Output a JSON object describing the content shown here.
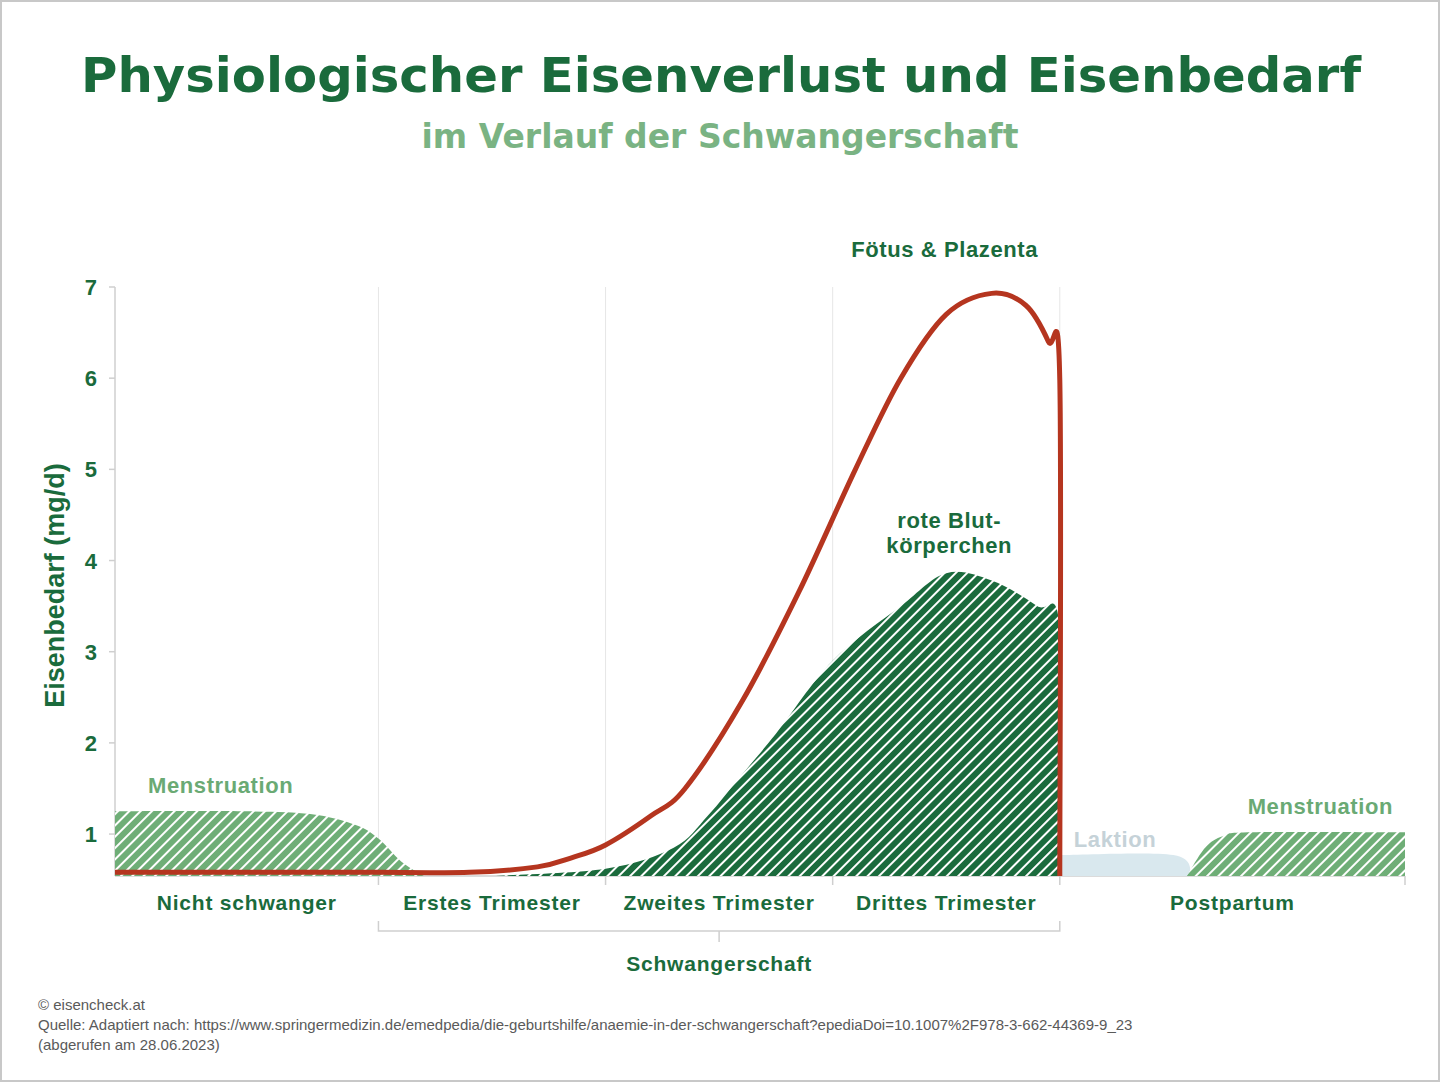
{
  "chart_data": {
    "type": "area",
    "title": "Physiologischer Eisenverlust und Eisenbedarf",
    "subtitle": "im Verlauf der Schwangerschaft",
    "y_label": "Eisenbedarf (mg/d)",
    "xlim": [
      -1.16,
      4.52
    ],
    "ylim": [
      0.54,
      7
    ],
    "yticks": [
      1,
      2,
      3,
      4,
      5,
      6,
      7
    ],
    "grid": true,
    "tick_labels": "y",
    "regions": [
      {
        "label": "Nicht schwanger",
        "from": -1.16,
        "to": 0
      },
      {
        "label": "Erstes Trimester",
        "from": 0,
        "to": 1
      },
      {
        "label": "Zweites Trimester",
        "from": 1,
        "to": 2
      },
      {
        "label": "Drittes Trimester",
        "from": 2,
        "to": 3
      },
      {
        "label": "Postpartum",
        "from": 3,
        "to": 4.52
      }
    ],
    "group": {
      "label": "Schwangerschaft",
      "from": 0,
      "to": 3
    },
    "series": [
      {
        "name": "Menstruation",
        "type": "area",
        "color": "#6fae77",
        "x": [
          -1.16,
          -0.6,
          -0.3,
          -0.1,
          0,
          0.1,
          0.2
        ],
        "values": [
          1.25,
          1.25,
          1.22,
          1.1,
          0.95,
          0.7,
          0.54
        ]
      },
      {
        "name": "Laktion",
        "type": "area",
        "color": "#d9e8ee",
        "x": [
          3,
          3.5,
          3.58
        ],
        "values": [
          0.77,
          0.77,
          0.54
        ]
      },
      {
        "name": "Menstruation",
        "type": "area",
        "color": "#6fae77",
        "x": [
          3.56,
          3.64,
          3.72,
          3.85,
          4.52
        ],
        "values": [
          0.54,
          0.85,
          0.98,
          1.02,
          1.02
        ]
      },
      {
        "name": "rote Blut-\nkörperchen",
        "type": "area",
        "color": "#1b6b3d",
        "x": [
          0.5,
          1.0,
          1.3,
          1.45,
          1.6,
          1.75,
          2.0,
          2.3,
          2.5,
          2.7,
          2.9,
          3.0,
          3.0
        ],
        "values": [
          0.54,
          0.62,
          0.85,
          1.2,
          1.65,
          2.1,
          2.9,
          3.5,
          3.86,
          3.78,
          3.5,
          3.25,
          0.54
        ]
      },
      {
        "name": "Fötus & Plazenta",
        "type": "line",
        "color": "#b5351f",
        "x": [
          -1.16,
          0,
          0.4,
          0.7,
          0.85,
          1.0,
          1.2,
          1.35,
          1.6,
          1.85,
          2.1,
          2.3,
          2.5,
          2.7,
          2.85,
          2.95,
          3.0,
          3.0
        ],
        "values": [
          0.58,
          0.58,
          0.58,
          0.64,
          0.74,
          0.88,
          1.2,
          1.5,
          2.45,
          3.65,
          5.0,
          6.0,
          6.7,
          6.93,
          6.8,
          6.4,
          5.98,
          0.54
        ]
      }
    ],
    "source": [
      "© eisencheck.at",
      "Quelle: Adaptiert nach: https://www.springermedizin.de/emedpedia/die-geburtshilfe/anaemie-in-der-schwangerschaft?epediaDoi=10.1007%2F978-3-662-44369-9_23",
      "(abgerufen am 28.06.2023)"
    ]
  }
}
